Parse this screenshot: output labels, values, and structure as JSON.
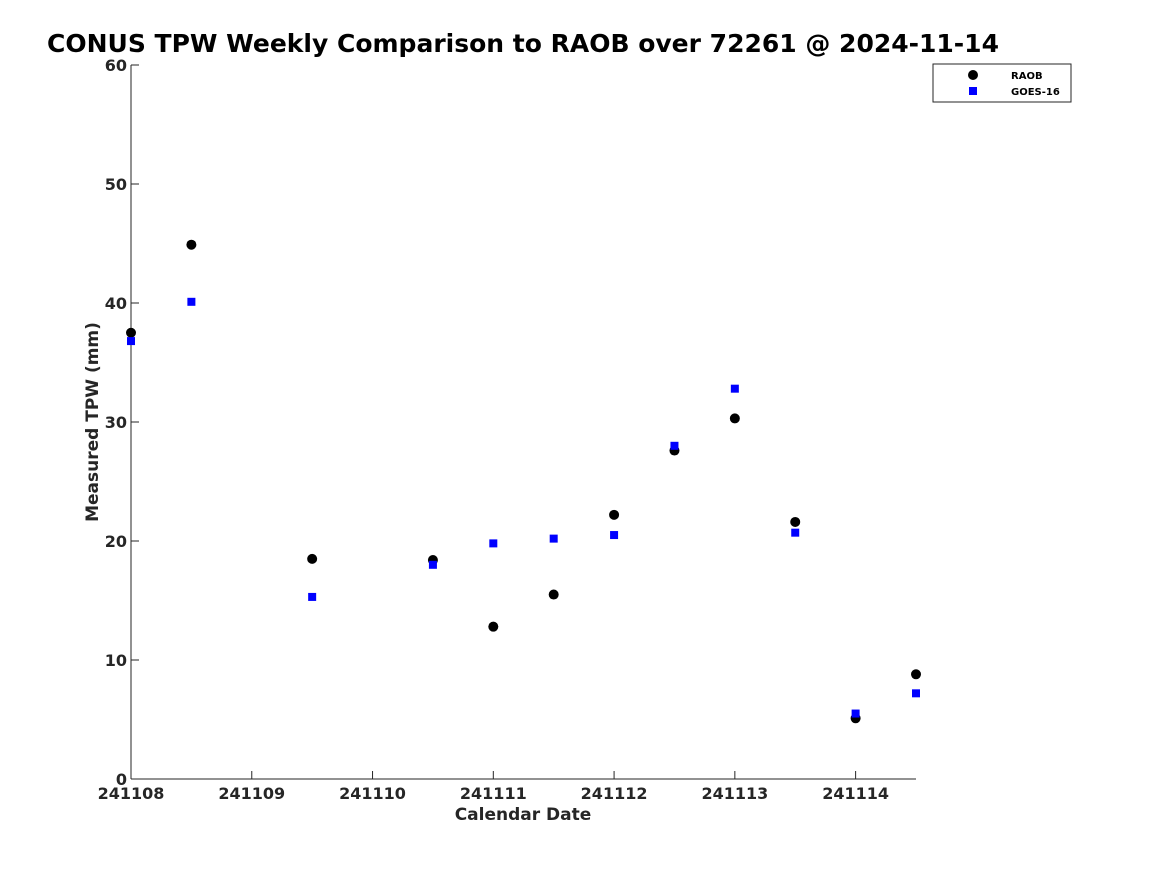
{
  "chart_data": {
    "type": "scatter",
    "title": "CONUS TPW Weekly Comparison to RAOB over 72261 @ 2024-11-14",
    "xlabel": "Calendar Date",
    "ylabel": "Measured TPW (mm)",
    "x_tick_labels": [
      "241108",
      "241109",
      "241110",
      "241111",
      "241112",
      "241113",
      "241114"
    ],
    "y_tick_labels": [
      "0",
      "10",
      "20",
      "30",
      "40",
      "50",
      "60"
    ],
    "xlim": [
      "241108 00Z",
      "241114 12Z"
    ],
    "ylim": [
      0,
      60
    ],
    "grid": false,
    "legend_position": "top-right",
    "series": [
      {
        "name": "RAOB",
        "marker": "circle",
        "color": "#000000",
        "points": [
          {
            "x": "241108 00Z",
            "y": 37.5
          },
          {
            "x": "241108 12Z",
            "y": 44.9
          },
          {
            "x": "241109 12Z",
            "y": 18.5
          },
          {
            "x": "241110 12Z",
            "y": 18.4
          },
          {
            "x": "241111 00Z",
            "y": 12.8
          },
          {
            "x": "241111 12Z",
            "y": 15.5
          },
          {
            "x": "241112 00Z",
            "y": 22.2
          },
          {
            "x": "241112 12Z",
            "y": 27.6
          },
          {
            "x": "241113 00Z",
            "y": 30.3
          },
          {
            "x": "241113 12Z",
            "y": 21.6
          },
          {
            "x": "241114 00Z",
            "y": 5.1
          },
          {
            "x": "241114 12Z",
            "y": 8.8
          }
        ]
      },
      {
        "name": "GOES-16",
        "marker": "square",
        "color": "#0000ff",
        "points": [
          {
            "x": "241108 00Z",
            "y": 36.8
          },
          {
            "x": "241108 12Z",
            "y": 40.1
          },
          {
            "x": "241109 12Z",
            "y": 15.3
          },
          {
            "x": "241110 12Z",
            "y": 18.0
          },
          {
            "x": "241111 00Z",
            "y": 19.8
          },
          {
            "x": "241111 12Z",
            "y": 20.2
          },
          {
            "x": "241112 00Z",
            "y": 20.5
          },
          {
            "x": "241112 12Z",
            "y": 28.0
          },
          {
            "x": "241113 00Z",
            "y": 32.8
          },
          {
            "x": "241113 12Z",
            "y": 20.7
          },
          {
            "x": "241114 00Z",
            "y": 5.5
          },
          {
            "x": "241114 12Z",
            "y": 7.2
          }
        ]
      }
    ]
  }
}
